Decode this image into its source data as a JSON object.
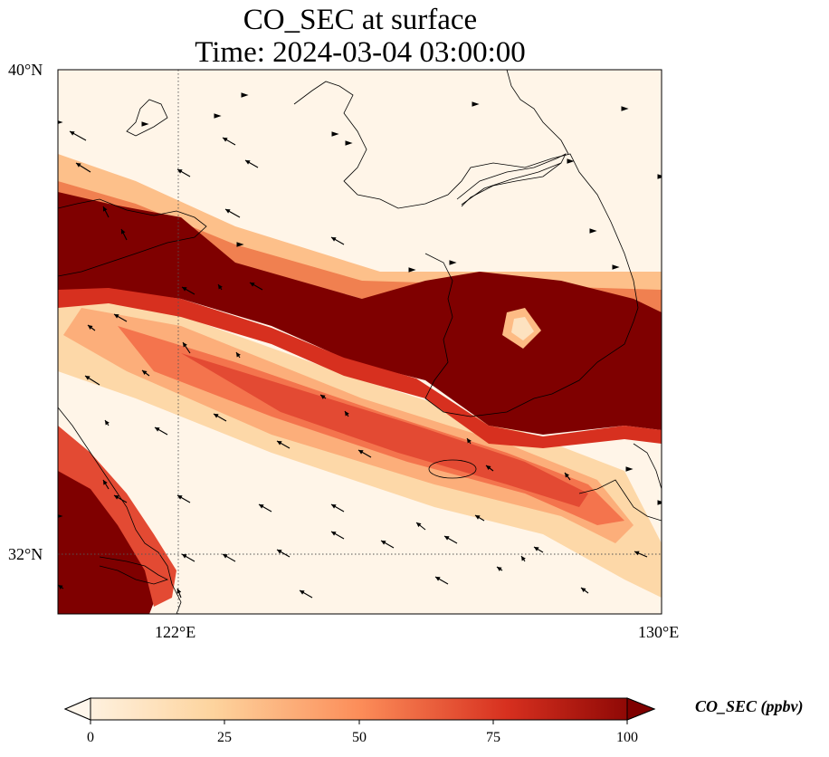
{
  "title": {
    "line1": "CO_SEC at surface",
    "line2": "Time: 2024-03-04 03:00:00"
  },
  "map": {
    "projection": "Lambert-style regional",
    "lat_labels": [
      "40°N",
      "32°N"
    ],
    "lon_labels": [
      "122°E",
      "130°E"
    ],
    "gridlines": "dotted",
    "field_colormap": "OrRd",
    "features": [
      "coastlines",
      "national borders",
      "wind vectors"
    ]
  },
  "colorbar": {
    "label": "CO_SEC (ppbv)",
    "ticks": [
      "0",
      "25",
      "50",
      "75",
      "100"
    ],
    "range": [
      0,
      100
    ],
    "extend": "both",
    "colors": [
      "#fff7ec",
      "#fdd49e",
      "#fc8d59",
      "#d7301f",
      "#7f0000"
    ]
  },
  "chart_data": {
    "type": "heatmap",
    "title": "CO_SEC at surface\nTime: 2024-03-04 03:00:00",
    "variable": "CO_SEC",
    "units": "ppbv",
    "level": "surface",
    "time": "2024-03-04 03:00:00",
    "lat_range": [
      31,
      40
    ],
    "lon_range": [
      120,
      130
    ],
    "value_range": [
      0,
      100
    ]
  }
}
